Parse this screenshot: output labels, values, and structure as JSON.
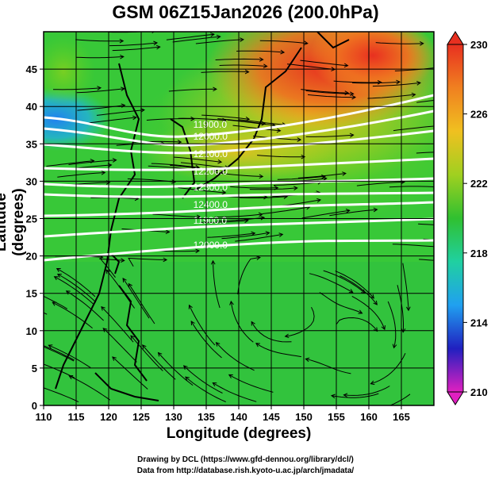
{
  "title": "GSM 06Z15Jan2026 (200.0hPa)",
  "chart_data": {
    "type": "map",
    "title": "GSM 06Z15Jan2026 (200.0hPa)",
    "xlabel": "Longitude (degrees)",
    "ylabel": "Latitude (degrees)",
    "xlim": [
      110,
      170
    ],
    "ylim": [
      0,
      50
    ],
    "xticks": [
      110,
      115,
      120,
      125,
      130,
      135,
      140,
      145,
      150,
      155,
      160,
      165
    ],
    "yticks": [
      0,
      5,
      10,
      15,
      20,
      25,
      30,
      35,
      40,
      45
    ],
    "grid": true,
    "shaded_field": "temperature (K)",
    "colorbar": {
      "min": 210,
      "max": 230,
      "ticks": [
        210,
        214,
        218,
        222,
        226,
        230
      ],
      "colors": [
        "#e020c0",
        "#2020c0",
        "#20a0f0",
        "#20d0a0",
        "#30c030",
        "#a0d020",
        "#f0c020",
        "#f08020",
        "#e83020"
      ]
    },
    "contours": {
      "field": "geopotential height (m)",
      "color": "#ffffff",
      "labels": [
        "11900.0",
        "12000.0",
        "12100.0",
        "12200.0",
        "12300.0",
        "12400.0"
      ],
      "label_lon": 133
    },
    "vectors": "wind streamlines"
  },
  "credits": {
    "line1": "Drawing by DCL (https://www.gfd-dennou.org/library/dcl/)",
    "line2": "Data from http://database.rish.kyoto-u.ac.jp/arch/jmadata/"
  }
}
